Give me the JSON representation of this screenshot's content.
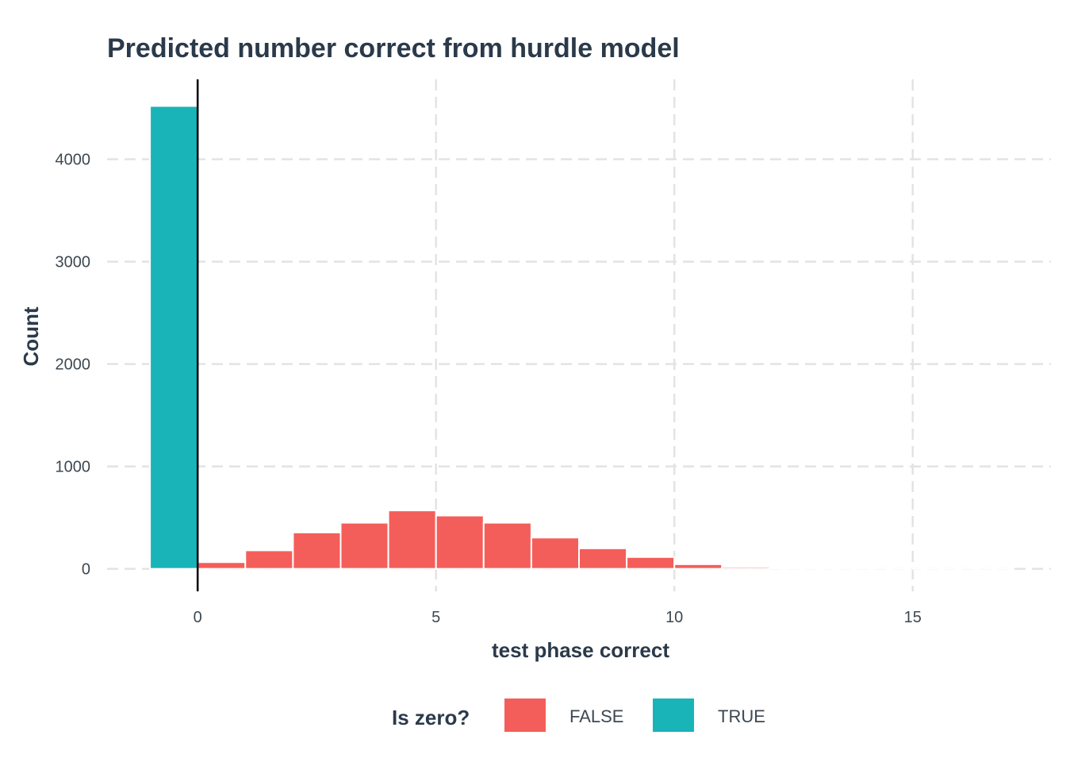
{
  "chart_data": {
    "type": "bar",
    "title": "Predicted number correct from hurdle model",
    "xlabel": "test phase correct",
    "ylabel": "Count",
    "xlim": [
      -1.9,
      17.9
    ],
    "ylim": [
      -220,
      4780
    ],
    "x_ticks": [
      0,
      5,
      10,
      15
    ],
    "x_tick_labels": [
      "0",
      "5",
      "10",
      "15"
    ],
    "y_ticks": [
      0,
      1000,
      2000,
      3000,
      4000
    ],
    "y_tick_labels": [
      "0",
      "1000",
      "2000",
      "3000",
      "4000"
    ],
    "grid": true,
    "vline_x": 0,
    "legend": {
      "title": "Is zero?",
      "position": "bottom",
      "entries": [
        {
          "label": "FALSE",
          "color": "#f45e5a"
        },
        {
          "label": "TRUE",
          "color": "#19b4b7"
        }
      ]
    },
    "series": [
      {
        "name": "TRUE",
        "color": "#19b4b7",
        "bins": [
          {
            "x0": -1,
            "x1": 0,
            "value": 4520
          }
        ]
      },
      {
        "name": "FALSE",
        "color": "#f45e5a",
        "bins": [
          {
            "x0": 0,
            "x1": 1,
            "value": 65
          },
          {
            "x0": 1,
            "x1": 2,
            "value": 180
          },
          {
            "x0": 2,
            "x1": 3,
            "value": 355
          },
          {
            "x0": 3,
            "x1": 4,
            "value": 450
          },
          {
            "x0": 4,
            "x1": 5,
            "value": 570
          },
          {
            "x0": 5,
            "x1": 6,
            "value": 520
          },
          {
            "x0": 6,
            "x1": 7,
            "value": 450
          },
          {
            "x0": 7,
            "x1": 8,
            "value": 305
          },
          {
            "x0": 8,
            "x1": 9,
            "value": 200
          },
          {
            "x0": 9,
            "x1": 10,
            "value": 115
          },
          {
            "x0": 10,
            "x1": 11,
            "value": 45
          },
          {
            "x0": 11,
            "x1": 12,
            "value": 18
          },
          {
            "x0": 12,
            "x1": 13,
            "value": 6
          },
          {
            "x0": 13,
            "x1": 14,
            "value": 3
          },
          {
            "x0": 14,
            "x1": 15,
            "value": 2
          },
          {
            "x0": 15,
            "x1": 16,
            "value": 1
          },
          {
            "x0": 16,
            "x1": 17,
            "value": 1
          }
        ]
      }
    ]
  }
}
